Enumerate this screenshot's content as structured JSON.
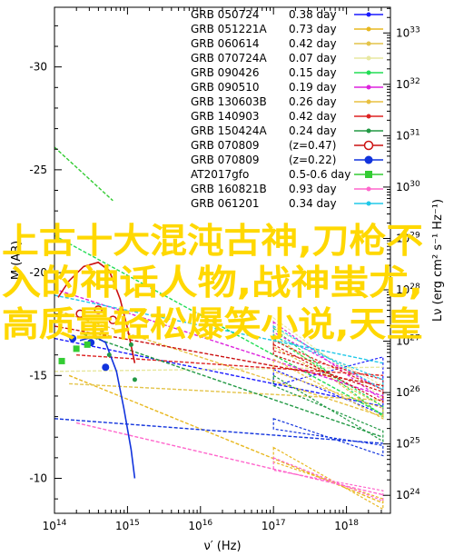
{
  "overlay": {
    "lines": [
      "上古十大混沌古神,刀枪不",
      "入的神话人物,战神蚩尤,",
      "高质量轻松爆笑小说,天皇"
    ]
  },
  "chart_data": {
    "type": "line",
    "x_scale": "log",
    "xlim": [
      100000000000000.0,
      4e+18
    ],
    "ylim_left": [
      -8.3,
      -32.9
    ],
    "ylim_right_log": [
      23.65,
      33.5
    ],
    "xlabel": "ν′ (Hz)",
    "ylabel_left": "M (AB)",
    "ylabel_right": "Lν (erg cm² s⁻¹ Hz⁻¹)",
    "x_ticks": [
      {
        "value": 14,
        "label": "10^14"
      },
      {
        "value": 15,
        "label": "10^15"
      },
      {
        "value": 16,
        "label": "10^16"
      },
      {
        "value": 17,
        "label": "10^17"
      },
      {
        "value": 18,
        "label": "10^18"
      }
    ],
    "y_ticks_left": [
      {
        "value": -30,
        "label": "-30"
      },
      {
        "value": -25,
        "label": "-25"
      },
      {
        "value": -20,
        "label": "-20"
      },
      {
        "value": -15,
        "label": "-15"
      },
      {
        "value": -10,
        "label": "-10"
      }
    ],
    "y_ticks_right": [
      {
        "value": 33,
        "label": "10^33"
      },
      {
        "value": 32,
        "label": "10^32"
      },
      {
        "value": 31,
        "label": "10^31"
      },
      {
        "value": 30,
        "label": "10^30"
      },
      {
        "value": 29,
        "label": "10^29"
      },
      {
        "value": 28,
        "label": "10^28"
      },
      {
        "value": 27,
        "label": "10^27"
      },
      {
        "value": 26,
        "label": "10^26"
      },
      {
        "value": 25,
        "label": "10^25"
      },
      {
        "value": 24,
        "label": "10^24"
      }
    ],
    "legend_position": "top-right",
    "series": [
      {
        "name": "GRB 050724",
        "value": "0.38 day",
        "color": "#1a1aff",
        "marker": "dot",
        "line": [
          [
            14.0,
            -16.8
          ],
          [
            18.5,
            -13.5
          ]
        ],
        "bowtie": {
          "x": [
            17.0,
            18.5
          ],
          "y1": [
            -15.3,
            -15.9
          ],
          "y2": [
            -14.5,
            -13.1
          ]
        }
      },
      {
        "name": "GRB 051221A",
        "value": "0.73 day",
        "color": "#e8b820",
        "marker": "dot",
        "line": [
          [
            14.2,
            -15.0
          ],
          [
            18.5,
            -8.8
          ]
        ],
        "bowtie": {
          "x": [
            17.0,
            18.5
          ],
          "y1": [
            -11.5,
            -9.0
          ],
          "y2": [
            -10.8,
            -8.5
          ]
        }
      },
      {
        "name": "GRB 060614",
        "value": "0.42 day",
        "color": "#e4c44a",
        "marker": "dot",
        "line": [
          [
            14.2,
            -14.6
          ],
          [
            18.5,
            -13.8
          ]
        ],
        "bowtie": {
          "x": [
            17.0,
            18.5
          ],
          "y1": [
            -17.0,
            -13.5
          ],
          "y2": [
            -16.4,
            -13.0
          ]
        }
      },
      {
        "name": "GRB 070724A",
        "value": "0.07 day",
        "color": "#e8e8a0",
        "marker": "dot",
        "line": [
          [
            14.0,
            -15.2
          ],
          [
            18.5,
            -15.4
          ]
        ],
        "bowtie": {
          "x": [
            17.0,
            18.5
          ],
          "y1": [
            -17.8,
            -14.5
          ],
          "y2": [
            -17.3,
            -13.9
          ]
        }
      },
      {
        "name": "GRB 090426",
        "value": "0.15 day",
        "color": "#22dd55",
        "marker": "dot",
        "line": [
          [
            14.0,
            -21.8
          ],
          [
            18.5,
            -13.1
          ]
        ],
        "bowtie": {
          "x": [
            17.0,
            18.5
          ],
          "y1": [
            -17.3,
            -13.5
          ],
          "y2": [
            -16.8,
            -13.0
          ]
        }
      },
      {
        "name": "GRB 090510",
        "value": "0.19 day",
        "color": "#dd22dd",
        "marker": "dot",
        "line": [
          [
            14.0,
            -19.2
          ],
          [
            18.5,
            -14.0
          ]
        ],
        "bowtie": {
          "x": [
            17.0,
            18.5
          ],
          "y1": [
            -17.6,
            -14.3
          ],
          "y2": [
            -17.1,
            -13.8
          ]
        }
      },
      {
        "name": "GRB 130603B",
        "value": "0.26 day",
        "color": "#e8c040",
        "marker": "dot",
        "line": [
          [
            14.0,
            -18.2
          ],
          [
            18.5,
            -13.0
          ]
        ],
        "bowtie": {
          "x": [
            17.0,
            18.5
          ],
          "y1": [
            -15.8,
            -13.4
          ],
          "y2": [
            -15.2,
            -12.9
          ]
        }
      },
      {
        "name": "GRB 140903",
        "value": "0.42 day",
        "color": "#dd2222",
        "marker": "dot",
        "line": [
          [
            14.3,
            -16.0
          ],
          [
            18.5,
            -15.0
          ]
        ],
        "bowtie": {
          "x": [
            17.0,
            18.5
          ],
          "y1": [
            -16.7,
            -14.8
          ],
          "y2": [
            -16.2,
            -14.3
          ]
        }
      },
      {
        "name": "GRB 150424A",
        "value": "0.24 day",
        "color": "#229944",
        "marker": "dot",
        "line": [
          [
            14.4,
            -17.0
          ],
          [
            18.5,
            -12.0
          ]
        ],
        "bowtie": {
          "x": [
            17.0,
            18.5
          ],
          "y1": [
            -15.0,
            -12.3
          ],
          "y2": [
            -14.5,
            -11.8
          ]
        }
      },
      {
        "name": "GRB 070809",
        "value": "(z=0.47)",
        "color": "#cc1111",
        "marker": "open-circle",
        "line": [
          [
            14.0,
            -17.4
          ],
          [
            18.5,
            -14.5
          ]
        ],
        "bowtie": {
          "x": [
            17.0,
            18.5
          ],
          "y1": [
            -16.5,
            -14.2
          ],
          "y2": [
            -16.0,
            -13.7
          ]
        }
      },
      {
        "name": "GRB 070809",
        "value": "(z=0.22)",
        "color": "#1133dd",
        "marker": "filled-circle",
        "line": [
          [
            14.0,
            -12.9
          ],
          [
            18.5,
            -11.7
          ]
        ],
        "bowtie": {
          "x": [
            17.0,
            18.5
          ],
          "y1": [
            -12.9,
            -11.6
          ],
          "y2": [
            -12.4,
            -11.1
          ]
        }
      },
      {
        "name": "AT2017gfo",
        "value": "0.5-0.6 day",
        "color": "#33cc33",
        "marker": "square",
        "line": [
          [
            14.0,
            -26.1
          ],
          [
            14.8,
            -23.5
          ]
        ],
        "bowtie": null
      },
      {
        "name": "GRB 160821B",
        "value": "0.93 day",
        "color": "#ff66cc",
        "marker": "dot",
        "line": [
          [
            14.3,
            -12.7
          ],
          [
            18.5,
            -9.2
          ]
        ],
        "bowtie": {
          "x": [
            17.0,
            18.5
          ],
          "y1": [
            -11.0,
            -9.4
          ],
          "y2": [
            -10.4,
            -8.9
          ]
        }
      },
      {
        "name": "GRB 061201",
        "value": "0.34 day",
        "color": "#20c8e8",
        "marker": "dot",
        "line": [
          [
            14.0,
            -18.9
          ],
          [
            18.5,
            -15.6
          ]
        ],
        "bowtie": {
          "x": [
            17.0,
            18.5
          ],
          "y1": [
            -17.4,
            -14.8
          ],
          "y2": [
            -16.9,
            -14.3
          ]
        }
      }
    ],
    "curves": [
      {
        "name": "",
        "color": "#cc1111",
        "points": [
          [
            14.05,
            -18.8
          ],
          [
            14.2,
            -19.6
          ],
          [
            14.4,
            -20.3
          ],
          [
            14.6,
            -20.5
          ],
          [
            14.75,
            -20.1
          ],
          [
            14.9,
            -18.7
          ],
          [
            15.0,
            -17.3
          ],
          [
            15.1,
            -15.6
          ]
        ]
      },
      {
        "name": "",
        "color": "#1133dd",
        "points": [
          [
            14.35,
            -16.7
          ],
          [
            14.55,
            -16.9
          ],
          [
            14.7,
            -16.6
          ],
          [
            14.85,
            -15.2
          ],
          [
            14.95,
            -13.4
          ],
          [
            15.05,
            -11.4
          ],
          [
            15.1,
            -10.0
          ]
        ]
      }
    ]
  }
}
